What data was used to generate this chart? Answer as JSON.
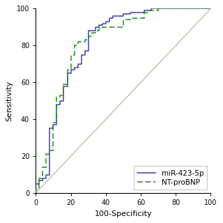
{
  "title": "",
  "xlabel": "100-Specificity",
  "ylabel": "Sensitivity",
  "xlim": [
    0,
    100
  ],
  "ylim": [
    0,
    100
  ],
  "xticks": [
    0,
    20,
    40,
    60,
    80,
    100
  ],
  "yticks": [
    0,
    20,
    40,
    60,
    80,
    100
  ],
  "mir423_color": "#4040aa",
  "ntprobnp_color": "#228B22",
  "diagonal_color": "#c8bca8",
  "legend_labels": [
    "miR-423-5p",
    "NT-proBNP"
  ],
  "mir423_x": [
    0,
    0,
    2,
    2,
    4,
    4,
    6,
    6,
    8,
    8,
    10,
    10,
    12,
    12,
    14,
    14,
    16,
    16,
    18,
    18,
    20,
    20,
    22,
    22,
    24,
    24,
    26,
    26,
    28,
    28,
    30,
    30,
    34,
    34,
    36,
    36,
    38,
    38,
    40,
    40,
    42,
    42,
    44,
    44,
    46,
    46,
    50,
    50,
    54,
    54,
    58,
    58,
    62,
    62,
    64,
    64,
    66,
    66,
    68,
    68,
    70,
    70,
    80,
    80,
    90,
    90,
    100
  ],
  "mir423_y": [
    0,
    5,
    5,
    7,
    7,
    8,
    8,
    10,
    10,
    35,
    35,
    37,
    37,
    48,
    48,
    50,
    50,
    58,
    58,
    65,
    65,
    67,
    67,
    68,
    68,
    70,
    70,
    75,
    75,
    77,
    77,
    88,
    88,
    90,
    90,
    91,
    91,
    92,
    92,
    93,
    93,
    95,
    95,
    96,
    96,
    96,
    96,
    97,
    97,
    98,
    98,
    98,
    98,
    99,
    99,
    99,
    99,
    100,
    100,
    100,
    100,
    100,
    100,
    100,
    100,
    100,
    100
  ],
  "ntprobnp_x": [
    0,
    0,
    2,
    2,
    4,
    4,
    6,
    6,
    8,
    8,
    10,
    10,
    12,
    12,
    14,
    14,
    16,
    16,
    18,
    18,
    20,
    20,
    22,
    22,
    24,
    24,
    26,
    26,
    28,
    28,
    30,
    30,
    32,
    32,
    34,
    34,
    36,
    36,
    38,
    38,
    40,
    40,
    42,
    42,
    44,
    44,
    46,
    46,
    50,
    50,
    54,
    54,
    58,
    58,
    62,
    62,
    64,
    64,
    70,
    70,
    80,
    80,
    90,
    90,
    100
  ],
  "ntprobnp_y": [
    0,
    2,
    2,
    8,
    8,
    14,
    14,
    21,
    21,
    23,
    23,
    38,
    38,
    52,
    52,
    53,
    53,
    59,
    59,
    67,
    67,
    75,
    75,
    80,
    80,
    82,
    82,
    82,
    82,
    83,
    83,
    85,
    85,
    87,
    87,
    88,
    88,
    89,
    89,
    90,
    90,
    90,
    90,
    90,
    90,
    90,
    90,
    90,
    90,
    94,
    94,
    95,
    95,
    95,
    95,
    98,
    98,
    99,
    99,
    100,
    100,
    100,
    100,
    100,
    100
  ],
  "background_color": "#ffffff",
  "font_size": 8,
  "legend_fontsize": 7.5
}
